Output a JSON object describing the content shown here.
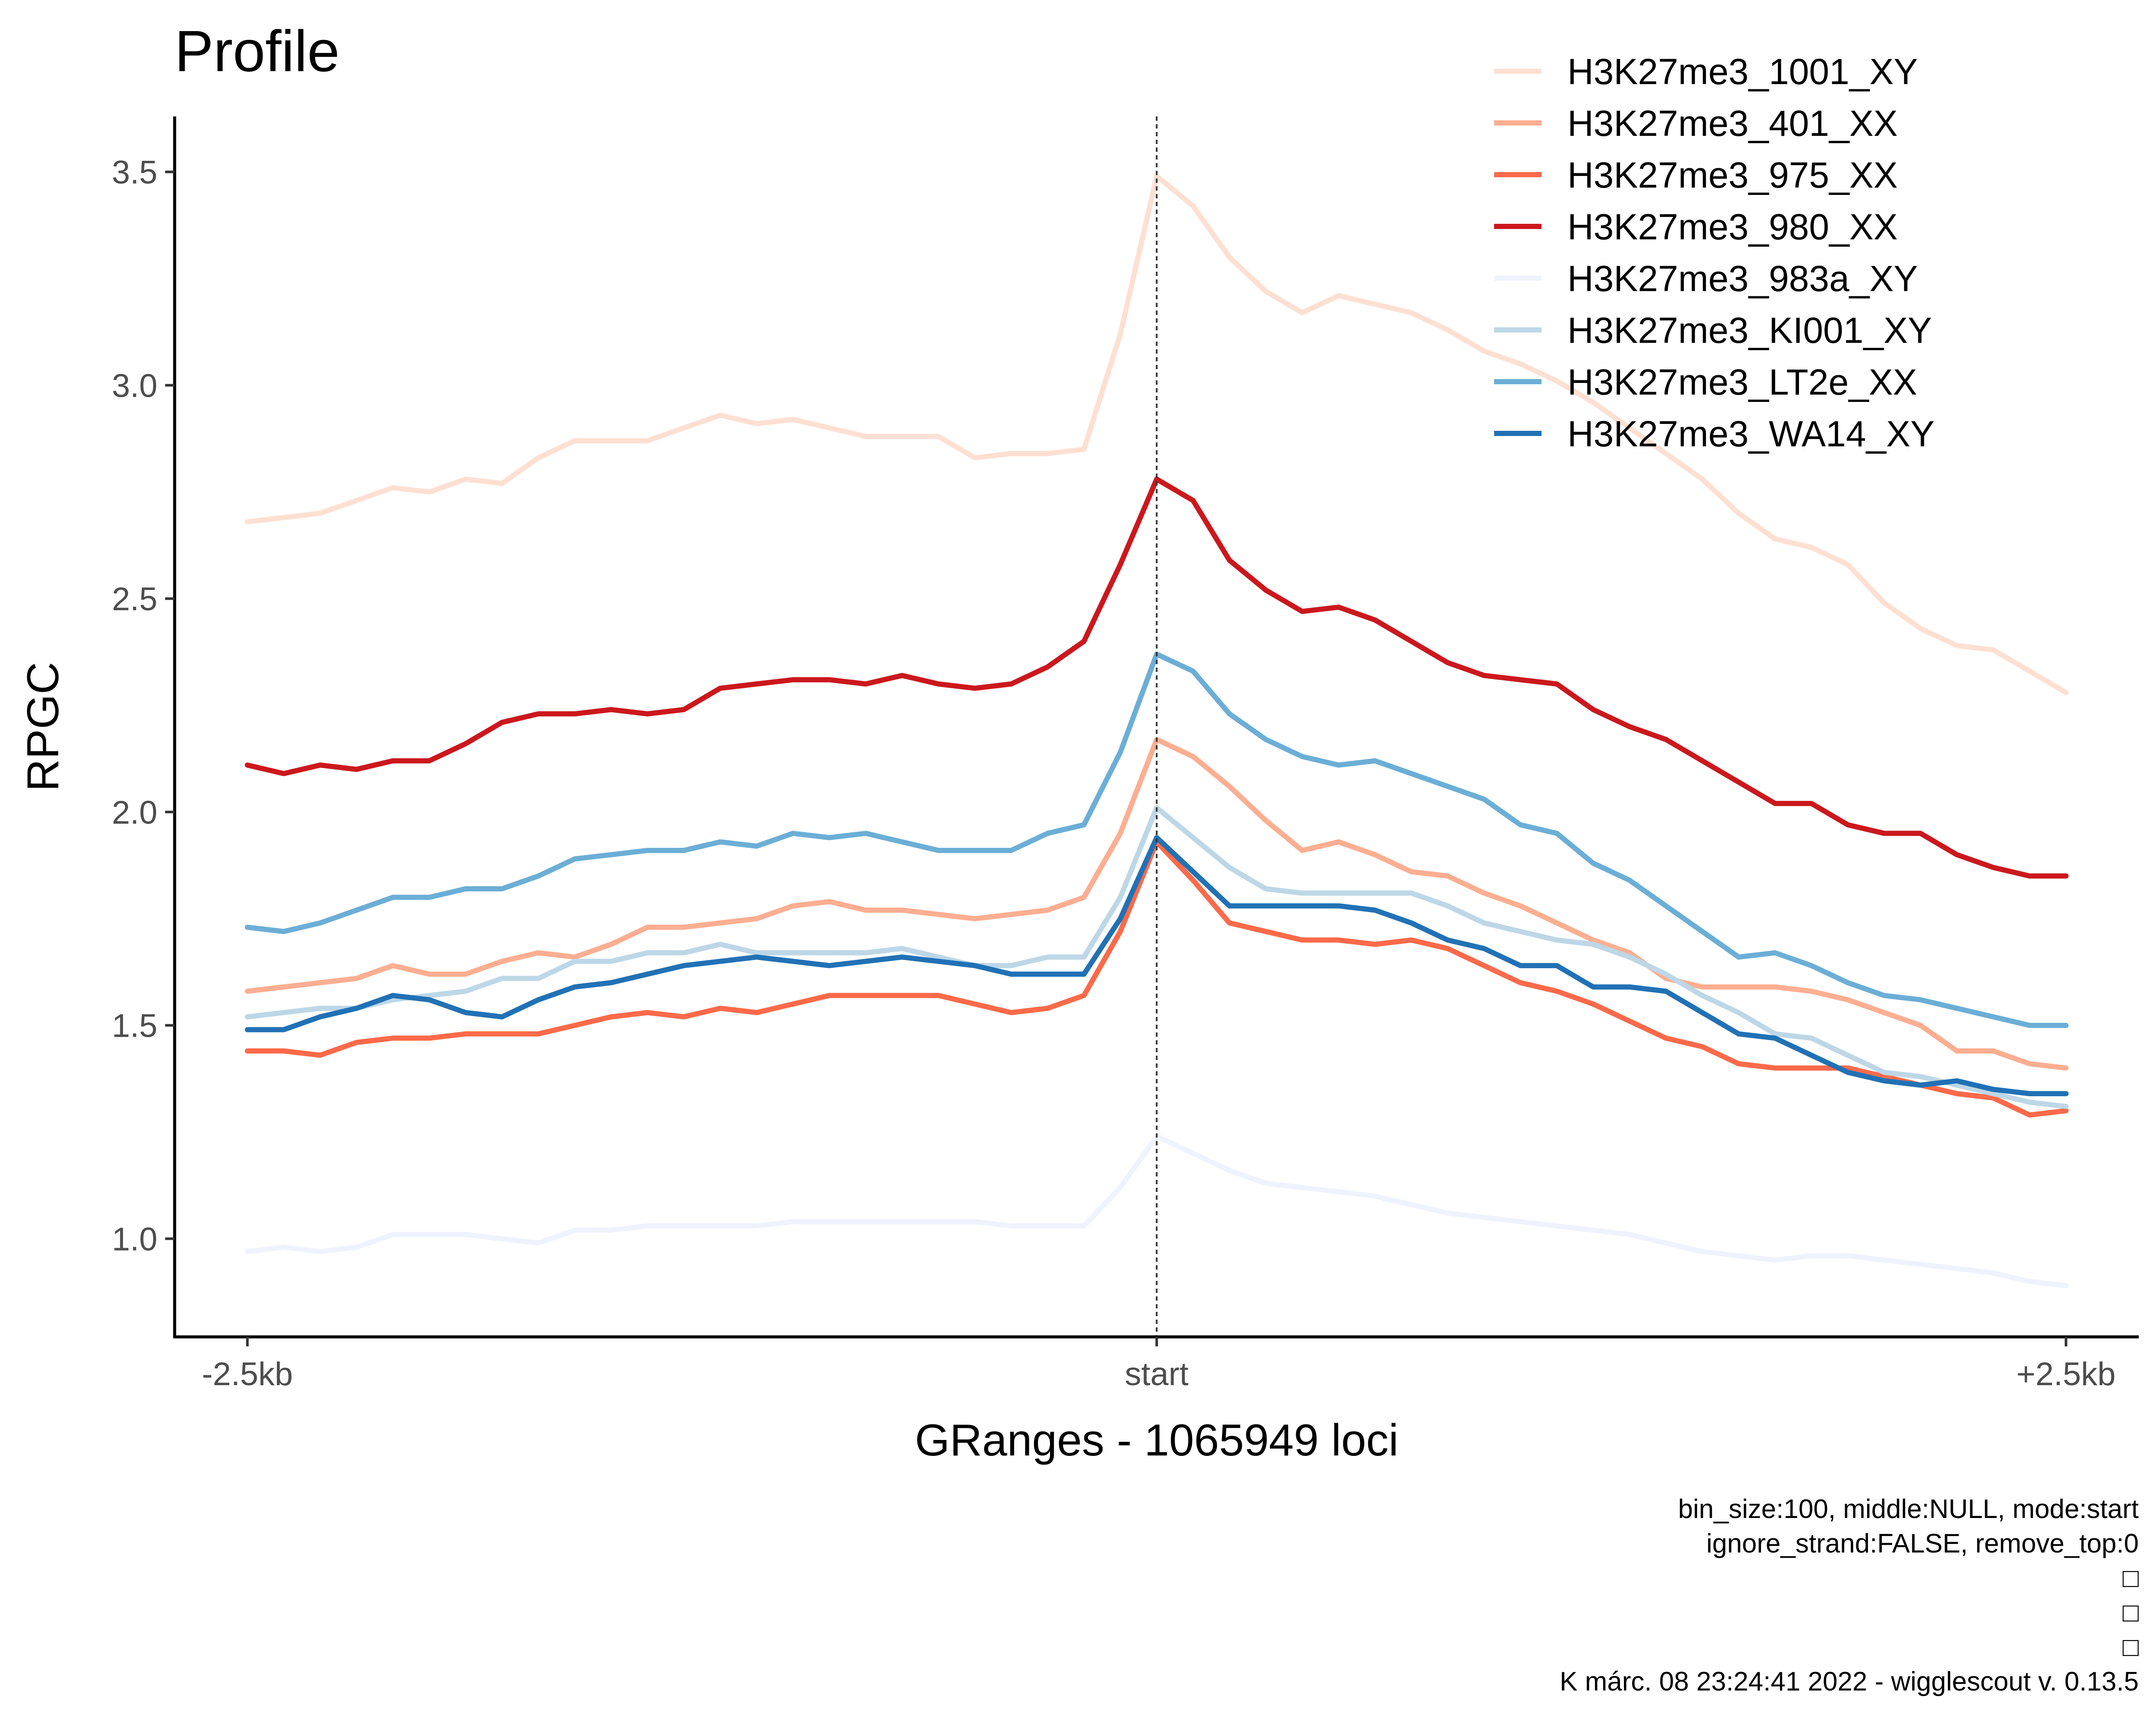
{
  "chart_data": {
    "type": "line",
    "title": "Profile",
    "xlabel": "GRanges - 1065949 loci",
    "ylabel": "RPGC",
    "x_tick_labels": [
      "-2.5kb",
      "start",
      "+2.5kb"
    ],
    "x_tick_positions": [
      -2500,
      0,
      2500
    ],
    "y_ticks": [
      1.0,
      1.5,
      2.0,
      2.5,
      3.0,
      3.5
    ],
    "y_tick_labels": [
      "1.0",
      "1.5",
      "2.0",
      "2.5",
      "3.0",
      "3.5"
    ],
    "xlim": [
      -2700,
      2700
    ],
    "ylim": [
      0.77,
      3.63
    ],
    "vline_x": 0,
    "x": [
      -2500,
      -2400,
      -2300,
      -2200,
      -2100,
      -2000,
      -1900,
      -1800,
      -1700,
      -1600,
      -1500,
      -1400,
      -1300,
      -1200,
      -1100,
      -1000,
      -900,
      -800,
      -700,
      -600,
      -500,
      -400,
      -300,
      -200,
      -100,
      0,
      100,
      200,
      300,
      400,
      500,
      600,
      700,
      800,
      900,
      1000,
      1100,
      1200,
      1300,
      1400,
      1500,
      1600,
      1700,
      1800,
      1900,
      2000,
      2100,
      2200,
      2300,
      2400,
      2500
    ],
    "series": [
      {
        "name": "H3K27me3_1001_XY",
        "color": "#fee0d2",
        "values": [
          2.68,
          2.69,
          2.7,
          2.73,
          2.76,
          2.75,
          2.78,
          2.77,
          2.83,
          2.87,
          2.87,
          2.87,
          2.9,
          2.93,
          2.91,
          2.92,
          2.9,
          2.88,
          2.88,
          2.88,
          2.83,
          2.84,
          2.84,
          2.85,
          3.12,
          3.49,
          3.42,
          3.3,
          3.22,
          3.17,
          3.21,
          3.19,
          3.17,
          3.13,
          3.08,
          3.05,
          3.01,
          2.96,
          2.9,
          2.84,
          2.78,
          2.7,
          2.64,
          2.62,
          2.58,
          2.49,
          2.43,
          2.39,
          2.38,
          2.33,
          2.28
        ]
      },
      {
        "name": "H3K27me3_401_XX",
        "color": "#fcae91",
        "values": [
          1.58,
          1.59,
          1.6,
          1.61,
          1.64,
          1.62,
          1.62,
          1.65,
          1.67,
          1.66,
          1.69,
          1.73,
          1.73,
          1.74,
          1.75,
          1.78,
          1.79,
          1.77,
          1.77,
          1.76,
          1.75,
          1.76,
          1.77,
          1.8,
          1.95,
          2.17,
          2.13,
          2.06,
          1.98,
          1.91,
          1.93,
          1.9,
          1.86,
          1.85,
          1.81,
          1.78,
          1.74,
          1.7,
          1.67,
          1.61,
          1.59,
          1.59,
          1.59,
          1.58,
          1.56,
          1.53,
          1.5,
          1.44,
          1.44,
          1.41,
          1.4
        ]
      },
      {
        "name": "H3K27me3_975_XX",
        "color": "#fb6a4a",
        "values": [
          1.44,
          1.44,
          1.43,
          1.46,
          1.47,
          1.47,
          1.48,
          1.48,
          1.48,
          1.5,
          1.52,
          1.53,
          1.52,
          1.54,
          1.53,
          1.55,
          1.57,
          1.57,
          1.57,
          1.57,
          1.55,
          1.53,
          1.54,
          1.57,
          1.72,
          1.93,
          1.84,
          1.74,
          1.72,
          1.7,
          1.7,
          1.69,
          1.7,
          1.68,
          1.64,
          1.6,
          1.58,
          1.55,
          1.51,
          1.47,
          1.45,
          1.41,
          1.4,
          1.4,
          1.4,
          1.38,
          1.36,
          1.34,
          1.33,
          1.29,
          1.3
        ]
      },
      {
        "name": "H3K27me3_980_XX",
        "color": "#cb181d",
        "values": [
          2.11,
          2.09,
          2.11,
          2.1,
          2.12,
          2.12,
          2.16,
          2.21,
          2.23,
          2.23,
          2.24,
          2.23,
          2.24,
          2.29,
          2.3,
          2.31,
          2.31,
          2.3,
          2.32,
          2.3,
          2.29,
          2.3,
          2.34,
          2.4,
          2.58,
          2.78,
          2.73,
          2.59,
          2.52,
          2.47,
          2.48,
          2.45,
          2.4,
          2.35,
          2.32,
          2.31,
          2.3,
          2.24,
          2.2,
          2.17,
          2.12,
          2.07,
          2.02,
          2.02,
          1.97,
          1.95,
          1.95,
          1.9,
          1.87,
          1.85,
          1.85
        ]
      },
      {
        "name": "H3K27me3_983a_XY",
        "color": "#eff3ff",
        "values": [
          0.97,
          0.98,
          0.97,
          0.98,
          1.01,
          1.01,
          1.01,
          1.0,
          0.99,
          1.02,
          1.02,
          1.03,
          1.03,
          1.03,
          1.03,
          1.04,
          1.04,
          1.04,
          1.04,
          1.04,
          1.04,
          1.03,
          1.03,
          1.03,
          1.12,
          1.24,
          1.2,
          1.16,
          1.13,
          1.12,
          1.11,
          1.1,
          1.08,
          1.06,
          1.05,
          1.04,
          1.03,
          1.02,
          1.01,
          0.99,
          0.97,
          0.96,
          0.95,
          0.96,
          0.96,
          0.95,
          0.94,
          0.93,
          0.92,
          0.9,
          0.89
        ]
      },
      {
        "name": "H3K27me3_KI001_XY",
        "color": "#bdd7e7",
        "values": [
          1.52,
          1.53,
          1.54,
          1.54,
          1.56,
          1.57,
          1.58,
          1.61,
          1.61,
          1.65,
          1.65,
          1.67,
          1.67,
          1.69,
          1.67,
          1.67,
          1.67,
          1.67,
          1.68,
          1.66,
          1.64,
          1.64,
          1.66,
          1.66,
          1.8,
          2.01,
          1.94,
          1.87,
          1.82,
          1.81,
          1.81,
          1.81,
          1.81,
          1.78,
          1.74,
          1.72,
          1.7,
          1.69,
          1.66,
          1.62,
          1.57,
          1.53,
          1.48,
          1.47,
          1.43,
          1.39,
          1.38,
          1.36,
          1.34,
          1.32,
          1.31
        ]
      },
      {
        "name": "H3K27me3_LT2e_XX",
        "color": "#6baed6",
        "values": [
          1.73,
          1.72,
          1.74,
          1.77,
          1.8,
          1.8,
          1.82,
          1.82,
          1.85,
          1.89,
          1.9,
          1.91,
          1.91,
          1.93,
          1.92,
          1.95,
          1.94,
          1.95,
          1.93,
          1.91,
          1.91,
          1.91,
          1.95,
          1.97,
          2.14,
          2.37,
          2.33,
          2.23,
          2.17,
          2.13,
          2.11,
          2.12,
          2.09,
          2.06,
          2.03,
          1.97,
          1.95,
          1.88,
          1.84,
          1.78,
          1.72,
          1.66,
          1.67,
          1.64,
          1.6,
          1.57,
          1.56,
          1.54,
          1.52,
          1.5,
          1.5
        ]
      },
      {
        "name": "H3K27me3_WA14_XY",
        "color": "#2171b5",
        "values": [
          1.49,
          1.49,
          1.52,
          1.54,
          1.57,
          1.56,
          1.53,
          1.52,
          1.56,
          1.59,
          1.6,
          1.62,
          1.64,
          1.65,
          1.66,
          1.65,
          1.64,
          1.65,
          1.66,
          1.65,
          1.64,
          1.62,
          1.62,
          1.62,
          1.75,
          1.94,
          1.86,
          1.78,
          1.78,
          1.78,
          1.78,
          1.77,
          1.74,
          1.7,
          1.68,
          1.64,
          1.64,
          1.59,
          1.59,
          1.58,
          1.53,
          1.48,
          1.47,
          1.43,
          1.39,
          1.37,
          1.36,
          1.37,
          1.35,
          1.34,
          1.34
        ]
      }
    ],
    "legend_position": "top-right",
    "grid": false
  },
  "caption": {
    "lines": [
      "bin_size:100, middle:NULL, mode:start",
      "ignore_strand:FALSE, remove_top:0",
      "□",
      "□",
      "□",
      "K márc. 08 23:24:41 2022 - wigglescout v. 0.13.5"
    ]
  }
}
